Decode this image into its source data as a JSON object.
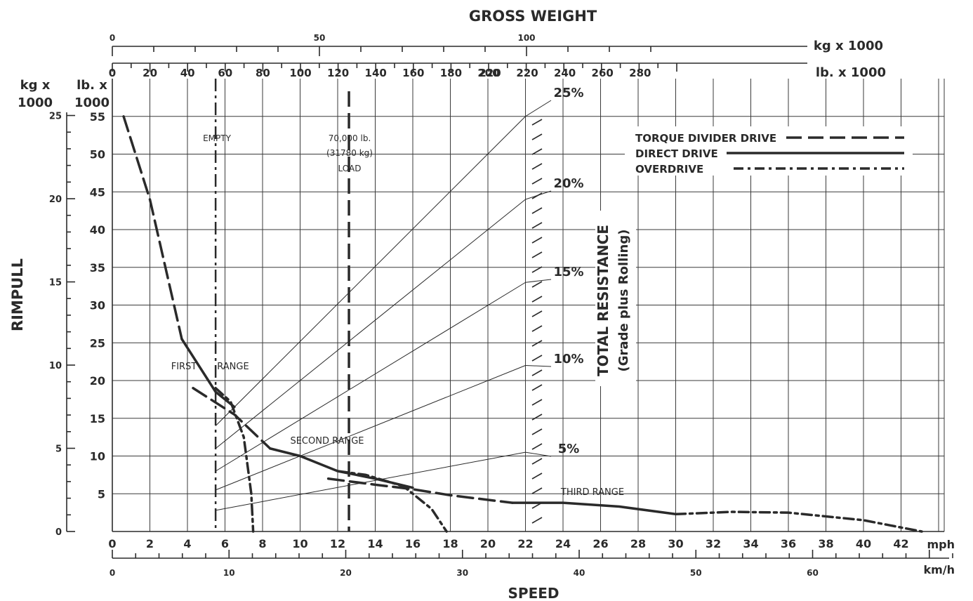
{
  "chart_data": {
    "type": "line",
    "title": "GROSS WEIGHT",
    "xlabel": "SPEED",
    "ylabel": "RIMPULL",
    "x_unit_mph": "mph",
    "x_unit_kmh": "km/h",
    "x_ticks_mph": [
      "0",
      "2",
      "4",
      "6",
      "8",
      "10",
      "12",
      "14",
      "16",
      "18",
      "20",
      "22",
      "24",
      "26",
      "28",
      "30",
      "32",
      "34",
      "36",
      "38",
      "40",
      "42"
    ],
    "x_ticks_kmh": [
      "0",
      "10",
      "20",
      "30",
      "40",
      "50",
      "60"
    ],
    "xlim_mph": [
      0,
      44
    ],
    "top_unit_kg": "kg x 1000",
    "top_unit_lb": "lb. x 1000",
    "top_ticks_kg": [
      "0",
      "50",
      "100"
    ],
    "top_ticks_lb": [
      "0",
      "20",
      "40",
      "60",
      "80",
      "100",
      "120",
      "140",
      "160",
      "180",
      "200",
      "220",
      "220",
      "240",
      "260",
      "280"
    ],
    "y_unit_kg_line1": "kg x",
    "y_unit_kg_line2": "1000",
    "y_unit_lb_line1": "lb. x",
    "y_unit_lb_line2": "1000",
    "y_ticks_lb": [
      "5",
      "10",
      "15",
      "20",
      "25",
      "30",
      "35",
      "40",
      "45",
      "50",
      "55"
    ],
    "y_ticks_kg": [
      "0",
      "5",
      "10",
      "15",
      "20",
      "25"
    ],
    "ylim_lb": [
      0,
      56
    ],
    "grid": true,
    "legend_position": "top-right",
    "legend": [
      {
        "name": "TORQUE DIVIDER DRIVE",
        "style": "long-dash"
      },
      {
        "name": "DIRECT DRIVE",
        "style": "solid"
      },
      {
        "name": "OVERDRIVE",
        "style": "dash-dot"
      }
    ],
    "annotations": {
      "empty": "EMPTY",
      "load_line1": "70,000 lb.",
      "load_line2": "(31780 kg)",
      "load_line3": "LOAD",
      "first_range_a": "FIRST",
      "first_range_b": "RANGE",
      "second_range": "SECOND RANGE",
      "third_range": "THIRD RANGE",
      "total_resistance": "TOTAL RESISTANCE",
      "grade_rolling": "(Grade plus Rolling)"
    },
    "resistance_lines": [
      {
        "name": "25%",
        "x": [
          5.5,
          22.0
        ],
        "y": [
          14,
          55
        ]
      },
      {
        "name": "20%",
        "x": [
          5.5,
          22.0
        ],
        "y": [
          11,
          44
        ]
      },
      {
        "name": "15%",
        "x": [
          5.5,
          22.0
        ],
        "y": [
          8,
          33
        ]
      },
      {
        "name": "10%",
        "x": [
          5.5,
          22.0
        ],
        "y": [
          5.5,
          22
        ]
      },
      {
        "name": "5%",
        "x": [
          5.5,
          22.0
        ],
        "y": [
          2.8,
          10.5
        ]
      }
    ],
    "weight_markers": [
      {
        "name": "EMPTY",
        "x_mph": 5.5
      },
      {
        "name": "LOAD",
        "x_mph": 12.6
      }
    ],
    "series": [
      {
        "name": "First range torque divider",
        "style": "long-dash",
        "x": [
          0.6,
          2.0,
          3.7
        ],
        "y": [
          55,
          44,
          25.5
        ]
      },
      {
        "name": "First range direct",
        "style": "solid",
        "x": [
          3.7,
          5.5,
          6.5
        ],
        "y": [
          25.5,
          18.5,
          16.5
        ]
      },
      {
        "name": "First range overdrive",
        "style": "dash-dot",
        "x": [
          5.5,
          6.3,
          7.0,
          7.4,
          7.5
        ],
        "y": [
          19,
          17.2,
          12.5,
          5,
          0
        ]
      },
      {
        "name": "Second range torque divider",
        "style": "long-dash",
        "x": [
          4.3,
          6.5,
          8.4
        ],
        "y": [
          19,
          15.5,
          11
        ]
      },
      {
        "name": "Second range direct",
        "style": "solid",
        "x": [
          8.4,
          10,
          12,
          14,
          16
        ],
        "y": [
          11,
          10,
          8,
          7,
          5.8
        ]
      },
      {
        "name": "Second range overdrive",
        "style": "dash-dot",
        "x": [
          12,
          13.5,
          15.5,
          17,
          17.8
        ],
        "y": [
          8,
          7.5,
          6,
          3,
          0
        ]
      },
      {
        "name": "Third range torque divider",
        "style": "long-dash",
        "x": [
          11.5,
          14,
          16,
          18,
          21.3
        ],
        "y": [
          7,
          6.2,
          5.6,
          4.8,
          3.8
        ]
      },
      {
        "name": "Third range direct",
        "style": "solid",
        "x": [
          21.3,
          24,
          27,
          30
        ],
        "y": [
          3.8,
          3.8,
          3.3,
          2.3
        ]
      },
      {
        "name": "Third range overdrive",
        "style": "dash-dot",
        "x": [
          30,
          33,
          36,
          40,
          43.1
        ],
        "y": [
          2.3,
          2.6,
          2.5,
          1.5,
          0
        ]
      }
    ]
  }
}
